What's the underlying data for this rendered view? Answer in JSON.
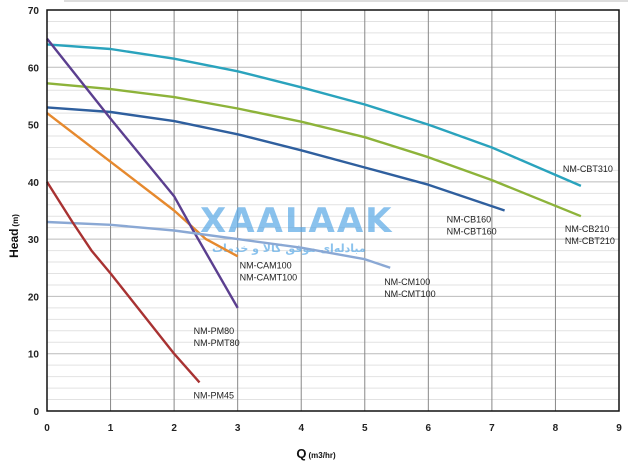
{
  "chart_data": {
    "type": "line",
    "title": "",
    "xlabel": "Q",
    "xlabel_unit": "(m3/hr)",
    "ylabel": "Head",
    "ylabel_unit": "(m)",
    "xlim": [
      0,
      9
    ],
    "ylim": [
      0,
      70
    ],
    "x_ticks": [
      "0",
      "1",
      "2",
      "3",
      "4",
      "5",
      "6",
      "7",
      "8",
      "9"
    ],
    "y_ticks": [
      "0",
      "10",
      "20",
      "30",
      "40",
      "50",
      "60",
      "70"
    ],
    "grid": true,
    "series": [
      {
        "name": "NM-CBT310",
        "label_lines": [
          "NM-CBT310"
        ],
        "color": "#2aa3bd",
        "x": [
          0,
          1,
          2,
          3,
          4,
          5,
          6,
          7,
          8.4
        ],
        "y": [
          64,
          63.2,
          61.5,
          59.3,
          56.5,
          53.5,
          50,
          46,
          39.3
        ]
      },
      {
        "name": "NM-CB210 / NM-CBT210",
        "label_lines": [
          "NM-CB210",
          "NM-CBT210"
        ],
        "color": "#8db33a",
        "x": [
          0,
          1,
          2,
          3,
          4,
          5,
          6,
          7,
          8.4
        ],
        "y": [
          57.2,
          56.2,
          54.8,
          52.8,
          50.5,
          47.8,
          44.3,
          40.3,
          34
        ]
      },
      {
        "name": "NM-CB160 / NM-CBT160",
        "label_lines": [
          "NM-CB160",
          "NM-CBT160"
        ],
        "color": "#2f5f9e",
        "x": [
          0,
          1,
          2,
          3,
          4,
          5,
          6,
          7.2
        ],
        "y": [
          53,
          52.2,
          50.6,
          48.3,
          45.5,
          42.5,
          39.5,
          35
        ]
      },
      {
        "name": "NM-CAM100 / NM-CAMT100",
        "label_lines": [
          "NM-CAM100",
          "NM-CAMT100"
        ],
        "color": "#e6892e",
        "x": [
          0,
          1,
          2,
          2.5,
          3
        ],
        "y": [
          52,
          43.5,
          35,
          30,
          27
        ]
      },
      {
        "name": "NM-PM80 / NM-PMT80",
        "label_lines": [
          "NM-PM80",
          "NM-PMT80"
        ],
        "color": "#5b3f8f",
        "x": [
          0,
          1,
          2,
          2.3,
          3
        ],
        "y": [
          65,
          51,
          37.5,
          31.5,
          18
        ]
      },
      {
        "name": "NM-CM100 / NM-CMT100",
        "label_lines": [
          "NM-CM100",
          "NM-CMT100"
        ],
        "color": "#8aa8d4",
        "x": [
          0,
          1,
          2,
          3,
          4,
          5,
          5.4
        ],
        "y": [
          33,
          32.5,
          31.5,
          30,
          28.5,
          26.5,
          25
        ]
      },
      {
        "name": "NM-PM45",
        "label_lines": [
          "NM-PM45"
        ],
        "color": "#a83232",
        "x": [
          0,
          0.4,
          0.7,
          1,
          2,
          2.4
        ],
        "y": [
          40,
          33,
          28,
          24,
          10,
          5
        ]
      }
    ]
  },
  "watermark": {
    "brand": "XAALAAK",
    "tagline": "مبادله‌ای موفق کالا و خدمات",
    "colors": [
      "#f5c542",
      "#5aa9e6"
    ]
  }
}
